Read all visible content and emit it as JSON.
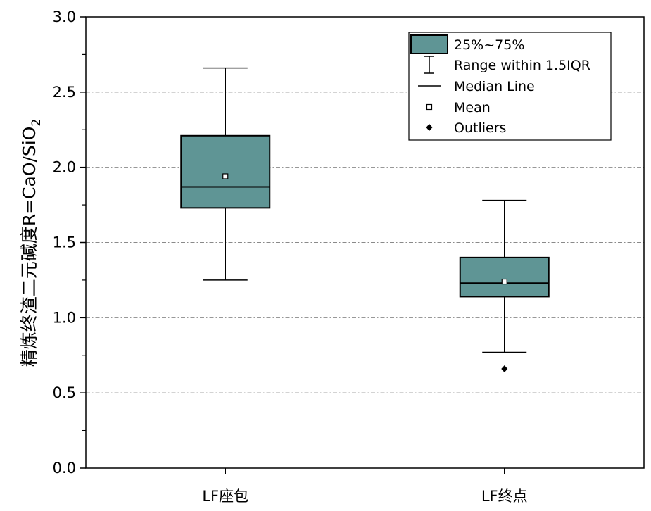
{
  "chart_data": {
    "type": "box",
    "ylabel": "精炼终渣二元碱度R=CaO/SiO",
    "ylabel_sub": "2",
    "ylim": [
      0,
      3.0
    ],
    "yticks": [
      "0.0",
      "0.5",
      "1.0",
      "1.5",
      "2.0",
      "2.5",
      "3.0"
    ],
    "categories": [
      "LF座包",
      "LF终点"
    ],
    "boxes": [
      {
        "category": "LF座包",
        "whisker_low": 1.25,
        "q1": 1.73,
        "median": 1.87,
        "q3": 2.21,
        "whisker_high": 2.66,
        "mean": 1.94,
        "outliers": []
      },
      {
        "category": "LF终点",
        "whisker_low": 0.77,
        "q1": 1.14,
        "median": 1.23,
        "q3": 1.4,
        "whisker_high": 1.78,
        "mean": 1.24,
        "outliers": [
          0.66
        ]
      }
    ],
    "grid": "horizontal dashed",
    "box_color": "#5f9595",
    "legend_position": "top-right",
    "legend": [
      {
        "key": "box",
        "label": "25%~75%"
      },
      {
        "key": "whisker",
        "label": "Range within 1.5IQR"
      },
      {
        "key": "median",
        "label": "Median Line"
      },
      {
        "key": "mean",
        "label": "Mean"
      },
      {
        "key": "outlier",
        "label": "Outliers"
      }
    ]
  }
}
